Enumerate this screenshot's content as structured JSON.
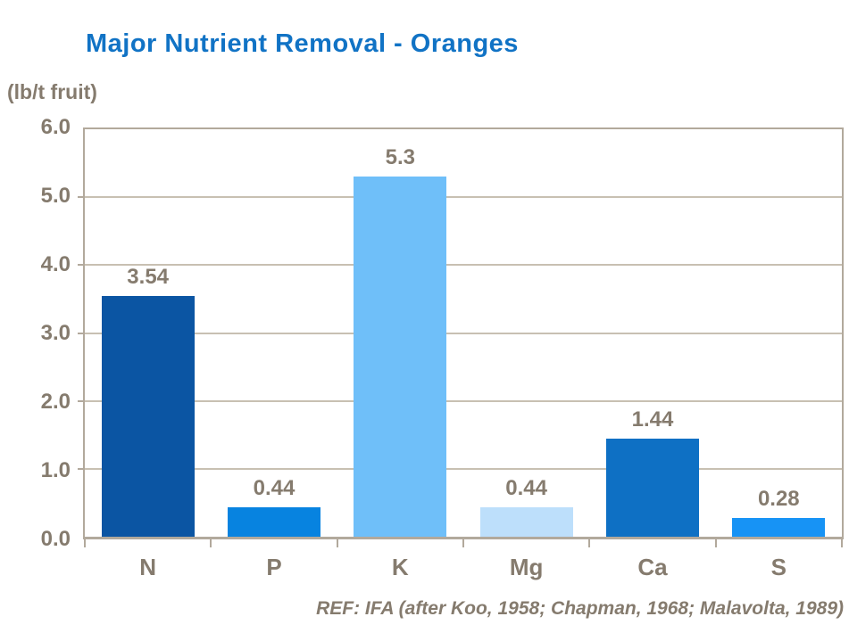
{
  "chart_data": {
    "type": "bar",
    "title": "Major Nutrient Removal - Oranges",
    "unit_label": "(lb/t fruit)",
    "categories": [
      "N",
      "P",
      "K",
      "Mg",
      "Ca",
      "S"
    ],
    "values": [
      3.54,
      0.44,
      5.3,
      0.44,
      1.44,
      0.28
    ],
    "value_labels": [
      "3.54",
      "0.44",
      "5.3",
      "0.44",
      "1.44",
      "0.28"
    ],
    "ylim": [
      0,
      6
    ],
    "ytick_step": 1,
    "ytick_labels": [
      "0.0",
      "1.0",
      "2.0",
      "3.0",
      "4.0",
      "5.0",
      "6.0"
    ],
    "grid": true,
    "legend": "none",
    "footer": "REF: IFA (after Koo, 1958; Chapman, 1968; Malavolta, 1989)"
  },
  "colors": {
    "title_text": "#1173C5",
    "label_text": "#857B6E",
    "grid_line": "#C8C0B2",
    "plot_border": "#B2A99C",
    "bar_colors": [
      "#0B55A3",
      "#0783E0",
      "#6FBFF9",
      "#BDDFFB",
      "#0E70C4",
      "#1793F5"
    ]
  }
}
